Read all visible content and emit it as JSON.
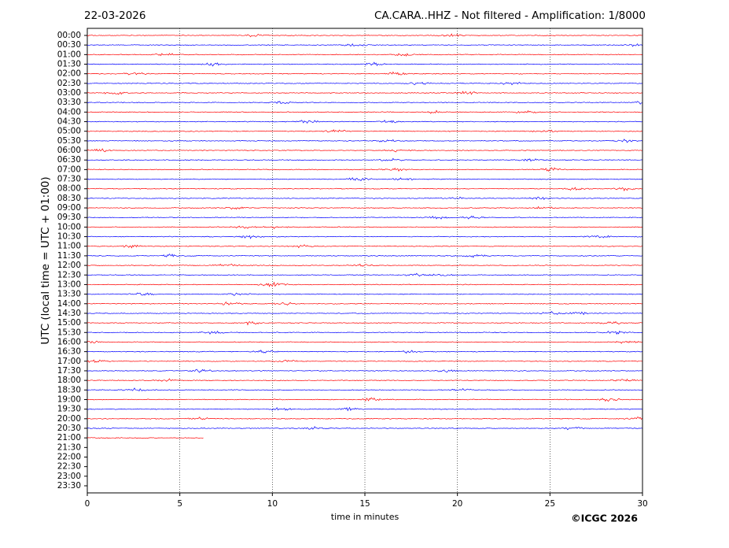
{
  "chart_data": {
    "type": "helicorder",
    "date": "22-03-2026",
    "title": "CA.CARA..HHZ - Not filtered - Amplification: 1/8000",
    "xlabel": "time in minutes",
    "ylabel": "UTC (local time = UTC + 01:00)",
    "credit": "©ICGC 2026",
    "categories": [
      "00:00",
      "00:30",
      "01:00",
      "01:30",
      "02:00",
      "02:30",
      "03:00",
      "03:30",
      "04:00",
      "04:30",
      "05:00",
      "05:30",
      "06:00",
      "06:30",
      "07:00",
      "07:30",
      "08:00",
      "08:30",
      "09:00",
      "09:30",
      "10:00",
      "10:30",
      "11:00",
      "11:30",
      "12:00",
      "12:30",
      "13:00",
      "13:30",
      "14:00",
      "14:30",
      "15:00",
      "15:30",
      "16:00",
      "16:30",
      "17:00",
      "17:30",
      "18:00",
      "18:30",
      "19:00",
      "19:30",
      "20:00",
      "20:30",
      "21:00",
      "21:30",
      "22:00",
      "22:30",
      "23:00",
      "23:30"
    ],
    "values": [
      30,
      30,
      30,
      30,
      30,
      30,
      30,
      30,
      30,
      30,
      30,
      30,
      30,
      30,
      30,
      30,
      30,
      30,
      30,
      30,
      30,
      30,
      30,
      30,
      30,
      30,
      30,
      30,
      30,
      30,
      30,
      30,
      30,
      30,
      30,
      30,
      30,
      30,
      30,
      30,
      30,
      30,
      6.3,
      null,
      null,
      null,
      null,
      null
    ],
    "colors": [
      "#ff0000",
      "#0000ff"
    ],
    "xlim": [
      0,
      30
    ],
    "xticks": [
      0,
      5,
      10,
      15,
      20,
      25,
      30
    ],
    "grid": true
  }
}
